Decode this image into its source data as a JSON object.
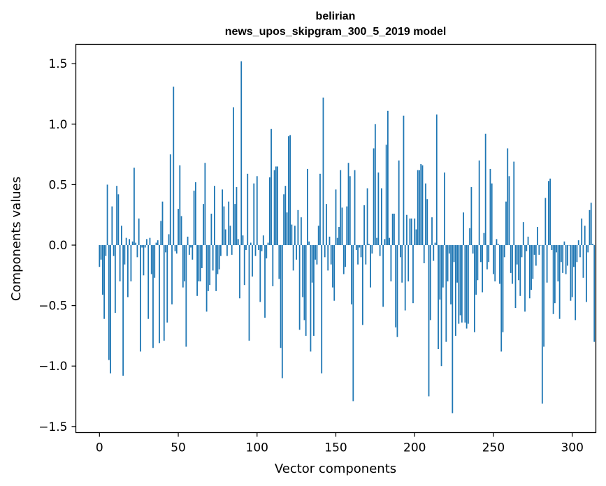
{
  "chart_data": {
    "type": "bar",
    "title_lines": [
      "belirian",
      "news_upos_skipgram_300_5_2019 model"
    ],
    "xlabel": "Vector components",
    "ylabel": "Components values",
    "xlim": [
      -15,
      315
    ],
    "ylim": [
      -1.55,
      1.66
    ],
    "xticks": [
      0,
      50,
      100,
      150,
      200,
      250,
      300
    ],
    "xtick_labels": [
      "0",
      "50",
      "100",
      "150",
      "200",
      "250",
      "300"
    ],
    "yticks": [
      -1.5,
      -1.0,
      -0.5,
      0.0,
      0.5,
      1.0,
      1.5
    ],
    "ytick_labels": [
      "−1.5",
      "−1.0",
      "−0.5",
      "0.0",
      "0.5",
      "1.0",
      "1.5"
    ],
    "bar_color": "#1f77b4",
    "grid": false,
    "values": [
      -0.18,
      -0.12,
      -0.41,
      -0.61,
      -0.09,
      0.5,
      -0.95,
      -1.06,
      0.32,
      -0.09,
      -0.56,
      0.49,
      0.42,
      -0.3,
      0.16,
      -1.08,
      -0.16,
      0.06,
      -0.43,
      0.05,
      -0.3,
      0.03,
      0.64,
      0.02,
      -0.1,
      0.22,
      -0.88,
      -0.02,
      -0.25,
      -0.02,
      0.05,
      -0.61,
      0.06,
      -0.24,
      -0.85,
      -0.27,
      0.02,
      0.04,
      -0.81,
      0.2,
      0.36,
      -0.79,
      -0.06,
      -0.64,
      0.09,
      0.75,
      -0.49,
      1.31,
      -0.05,
      -0.07,
      0.3,
      0.66,
      0.24,
      -0.35,
      -0.3,
      -0.84,
      0.07,
      -0.08,
      -0.02,
      -0.12,
      0.45,
      0.52,
      -0.42,
      -0.3,
      -0.3,
      -0.19,
      0.34,
      0.68,
      -0.55,
      -0.38,
      -0.33,
      0.26,
      -0.21,
      0.49,
      -0.38,
      -0.24,
      -0.2,
      -0.09,
      0.46,
      0.32,
      0.13,
      -0.09,
      0.36,
      0.16,
      -0.08,
      1.14,
      0.34,
      0.48,
      0.05,
      -0.44,
      1.52,
      0.08,
      -0.33,
      -0.04,
      0.59,
      -0.79,
      0.02,
      -0.26,
      0.51,
      -0.09,
      0.57,
      -0.04,
      -0.47,
      -0.05,
      0.08,
      -0.6,
      -0.11,
      0.02,
      0.56,
      0.96,
      -0.34,
      0.62,
      0.65,
      0.65,
      -0.28,
      -0.85,
      -1.1,
      0.42,
      0.49,
      0.27,
      0.9,
      0.91,
      0.17,
      -0.21,
      0.16,
      -0.12,
      0.29,
      -0.7,
      0.23,
      -0.43,
      -0.62,
      -0.75,
      0.63,
      0.03,
      -0.88,
      -0.31,
      -0.75,
      -0.12,
      -0.16,
      0.16,
      0.59,
      -1.06,
      1.22,
      -0.1,
      0.34,
      -0.21,
      0.07,
      -0.16,
      -0.35,
      -0.46,
      0.46,
      0.06,
      0.15,
      0.62,
      0.31,
      -0.24,
      -0.18,
      0.32,
      0.68,
      0.57,
      -0.49,
      -1.29,
      0.62,
      -0.04,
      -0.16,
      -0.02,
      -0.1,
      -0.66,
      0.33,
      -0.16,
      0.47,
      0.01,
      -0.35,
      -0.07,
      0.8,
      1.0,
      0.06,
      0.6,
      -0.09,
      0.47,
      -0.51,
      0.05,
      0.83,
      1.11,
      0.06,
      -0.3,
      0.26,
      0.26,
      -0.68,
      -0.76,
      0.7,
      -0.1,
      -0.31,
      1.07,
      -0.54,
      0.25,
      -0.3,
      0.22,
      0.22,
      -0.48,
      0.22,
      0.13,
      0.62,
      0.62,
      0.67,
      0.66,
      -0.15,
      0.51,
      0.38,
      -1.25,
      -0.62,
      0.23,
      -0.13,
      0.02,
      1.08,
      -0.86,
      -0.45,
      -1.0,
      -0.35,
      0.6,
      -0.8,
      -0.3,
      -0.07,
      -0.49,
      -1.39,
      -0.14,
      -0.75,
      -0.31,
      -0.65,
      -0.58,
      -0.64,
      0.27,
      -0.64,
      -0.69,
      -0.65,
      0.14,
      0.48,
      -0.07,
      -0.72,
      -0.41,
      -0.29,
      0.7,
      -0.14,
      -0.39,
      0.1,
      0.92,
      -0.2,
      -0.14,
      0.63,
      0.51,
      -0.24,
      -0.3,
      0.05,
      0.01,
      -0.32,
      -0.88,
      -0.72,
      -0.1,
      0.36,
      0.8,
      0.57,
      -0.23,
      -0.32,
      0.69,
      -0.52,
      -0.16,
      -0.29,
      -0.42,
      -0.1,
      0.19,
      -0.55,
      -0.05,
      0.07,
      -0.44,
      -0.37,
      -0.28,
      -0.08,
      -0.17,
      0.15,
      -0.08,
      0.0,
      -1.31,
      -0.84,
      0.39,
      -0.31,
      0.53,
      0.55,
      -0.04,
      -0.57,
      -0.48,
      -0.06,
      -0.3,
      -0.61,
      -0.14,
      -0.23,
      0.03,
      -0.24,
      -0.17,
      0.0,
      -0.46,
      -0.43,
      -0.18,
      -0.62,
      -0.14,
      0.04,
      -0.1,
      0.22,
      -0.27,
      0.16,
      -0.47,
      -0.06,
      0.29,
      0.35,
      0.01,
      -0.8
    ]
  }
}
